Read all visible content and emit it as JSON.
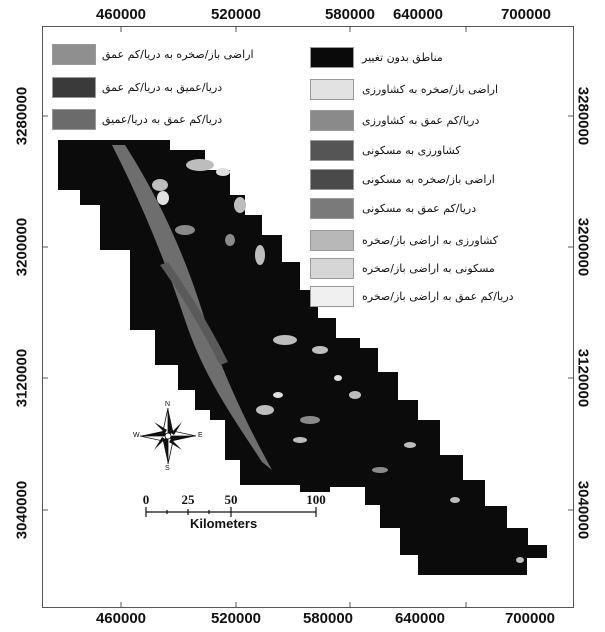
{
  "axes": {
    "x_ticks": [
      "460000",
      "520000",
      "580000",
      "640000",
      "700000"
    ],
    "y_ticks": [
      "3280000",
      "3200000",
      "3120000",
      "3040000"
    ]
  },
  "legend": {
    "left_items": [
      {
        "label": "اراضی باز/صخره به دریا/کم عمق",
        "color": "#8f8f8f"
      },
      {
        "label": "دریا/عمیق به دریا/کم عمق",
        "color": "#3a3a3a"
      },
      {
        "label": "دریا/کم عمق به دریا/عمیق",
        "color": "#6b6b6b"
      }
    ],
    "right_items": [
      {
        "label": "مناطق بدون تغییر",
        "color": "#0a0a0a"
      },
      {
        "label": "اراضی باز/صخره به کشاورزی",
        "color": "#e2e2e2"
      },
      {
        "label": "دریا/کم عمق به کشاورزی",
        "color": "#8a8a8a"
      },
      {
        "label": "کشاورزی به مسکونی",
        "color": "#555555"
      },
      {
        "label": "اراضی باز/صخره به مسکونی",
        "color": "#4a4a4a"
      },
      {
        "label": "دریا/کم عمق به مسکونی",
        "color": "#7a7a7a"
      },
      {
        "label": "کشاورزی به اراضی باز/صخره",
        "color": "#b8b8b8"
      },
      {
        "label": "مسکونی به اراضی باز/صخره",
        "color": "#d6d6d6"
      },
      {
        "label": "دریا/کم عمق به اراضی باز/صخره",
        "color": "#f0f0f0"
      }
    ]
  },
  "scale_bar": {
    "labels": [
      "0",
      "25",
      "50",
      "100"
    ],
    "unit": "Kilometers"
  },
  "north_arrow": {
    "n": "N",
    "s": "S",
    "e": "E",
    "w": "W"
  },
  "colors": {
    "map_fill": "#0b0b0b",
    "river": "#6e6e6e",
    "change_light": "#bdbdbd"
  }
}
